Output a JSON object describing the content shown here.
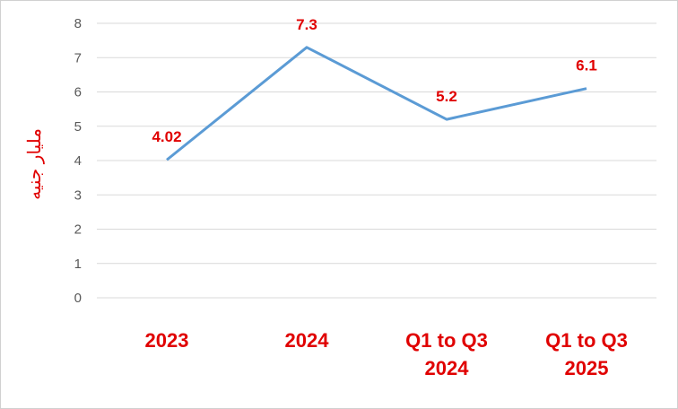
{
  "chart_data": {
    "type": "line",
    "y_label": "مليار جنيه",
    "categories": [
      "2023",
      "2024",
      "Q1 to Q3 2024",
      "Q1 to Q3 2025"
    ],
    "values": [
      4.02,
      7.3,
      5.2,
      6.1
    ],
    "color": "#5b9bd5",
    "label_color": "#e00000",
    "ylim": [
      0,
      8
    ],
    "yticks": [
      0,
      1,
      2,
      3,
      4,
      5,
      6,
      7,
      8
    ],
    "grid": true
  }
}
